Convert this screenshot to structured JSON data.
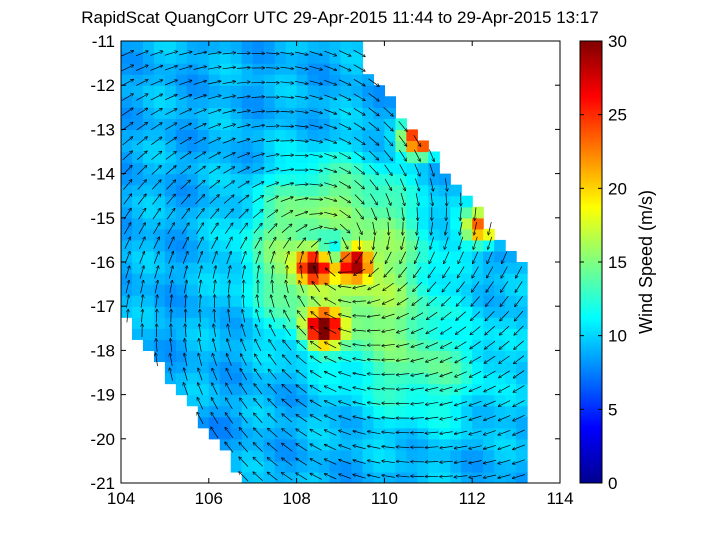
{
  "chart_data": {
    "type": "heatmap",
    "title": "RapidScat QuangCorr UTC 29-Apr-2015 11:44 to 29-Apr-2015 13:17",
    "xlabel": "",
    "ylabel": "",
    "xlim": [
      104,
      114
    ],
    "ylim": [
      -21,
      -11
    ],
    "x_ticks": [
      "104",
      "106",
      "108",
      "110",
      "112",
      "114"
    ],
    "y_ticks": [
      "-11",
      "-12",
      "-13",
      "-14",
      "-15",
      "-16",
      "-17",
      "-18",
      "-19",
      "-20",
      "-21"
    ],
    "colorbar": {
      "label": "Wind Speed (m/s)",
      "range": [
        0,
        30
      ],
      "ticks": [
        "0",
        "5",
        "10",
        "15",
        "20",
        "25",
        "30"
      ],
      "colormap": "jet"
    },
    "cyclone_center": [
      108.9,
      -15.8
    ],
    "features": [
      {
        "x": 108.6,
        "y": -17.5,
        "value": 28
      },
      {
        "x": 109.3,
        "y": -16.0,
        "value": 27
      },
      {
        "x": 108.4,
        "y": -16.1,
        "value": 26
      },
      {
        "x": 110.8,
        "y": -13.2,
        "value": 27
      },
      {
        "x": 112.2,
        "y": -15.2,
        "value": 24
      },
      {
        "x": 111.5,
        "y": -17.5,
        "value": 7
      },
      {
        "x": 106.0,
        "y": -19.8,
        "value": 8
      }
    ],
    "background_value": 9,
    "grid": false
  }
}
